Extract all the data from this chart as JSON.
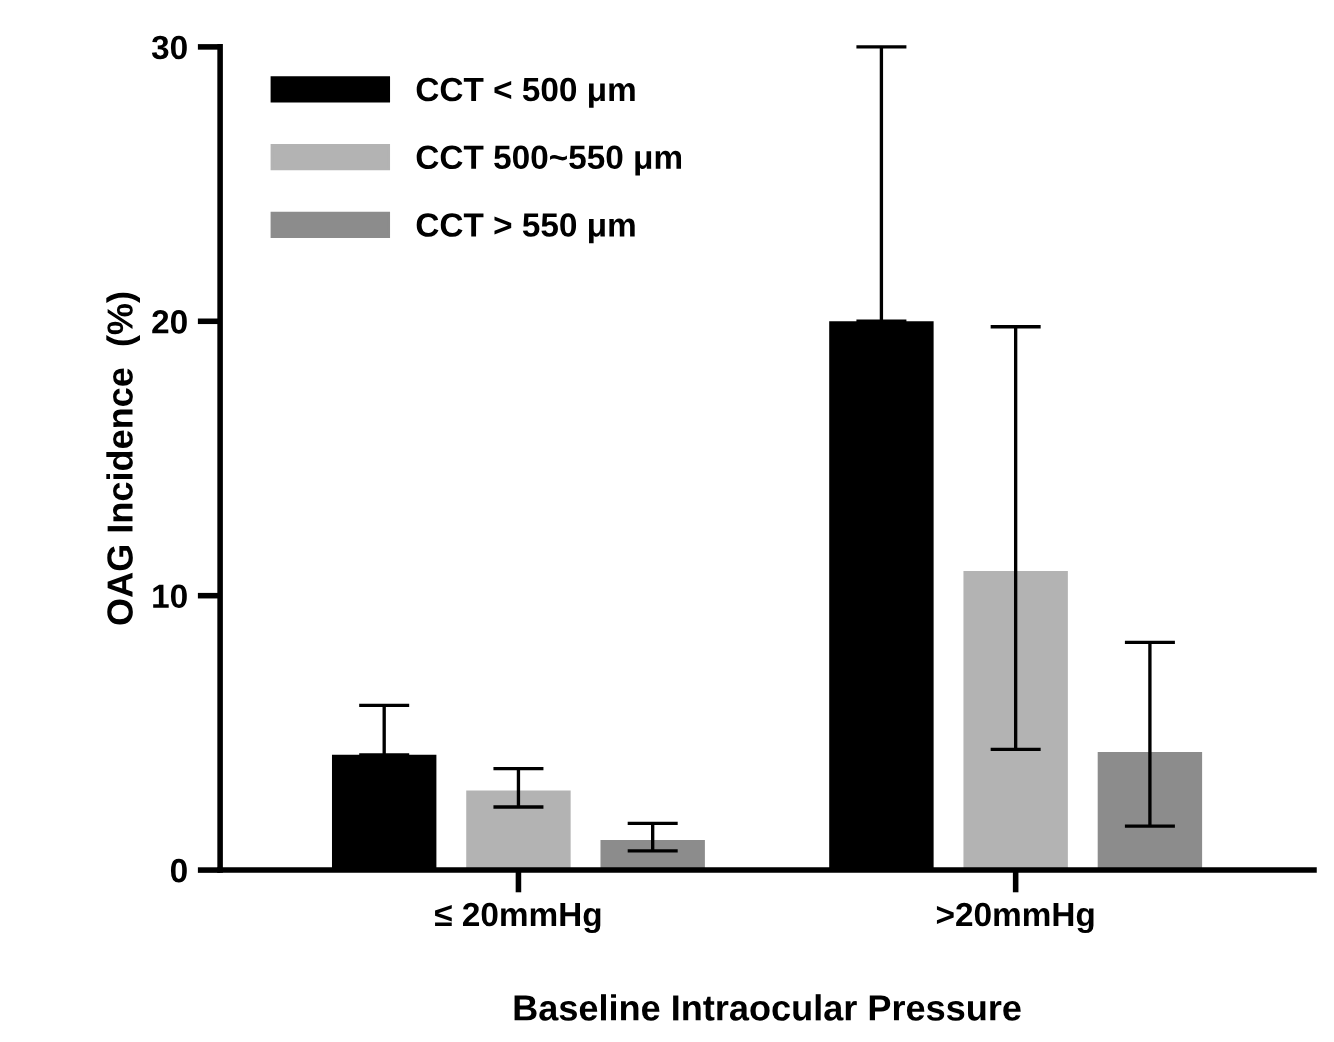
{
  "chart_data": {
    "type": "bar",
    "xlabel": "Baseline Intraocular Pressure",
    "ylabel": "OAG Incidence  (%)",
    "categories": [
      "≤ 20mmHg",
      ">20mmHg"
    ],
    "series": [
      {
        "name": "CCT < 500 μm",
        "color": "#000000",
        "values": [
          4.2,
          20.0
        ],
        "errors": [
          [
            4.2,
            6.0
          ],
          [
            20.0,
            30.0
          ]
        ]
      },
      {
        "name": "CCT 500~550 μm",
        "color": "#b3b3b3",
        "values": [
          2.9,
          10.9
        ],
        "errors": [
          [
            2.3,
            3.7
          ],
          [
            4.4,
            19.8
          ]
        ]
      },
      {
        "name": "CCT > 550 μm",
        "color": "#8c8c8c",
        "values": [
          1.1,
          4.3
        ],
        "errors": [
          [
            0.7,
            1.7
          ],
          [
            1.6,
            8.3
          ]
        ]
      }
    ],
    "ylim": [
      0,
      30
    ],
    "yticks": [
      0,
      10,
      20,
      30
    ],
    "grid": false,
    "legend": "top left"
  }
}
